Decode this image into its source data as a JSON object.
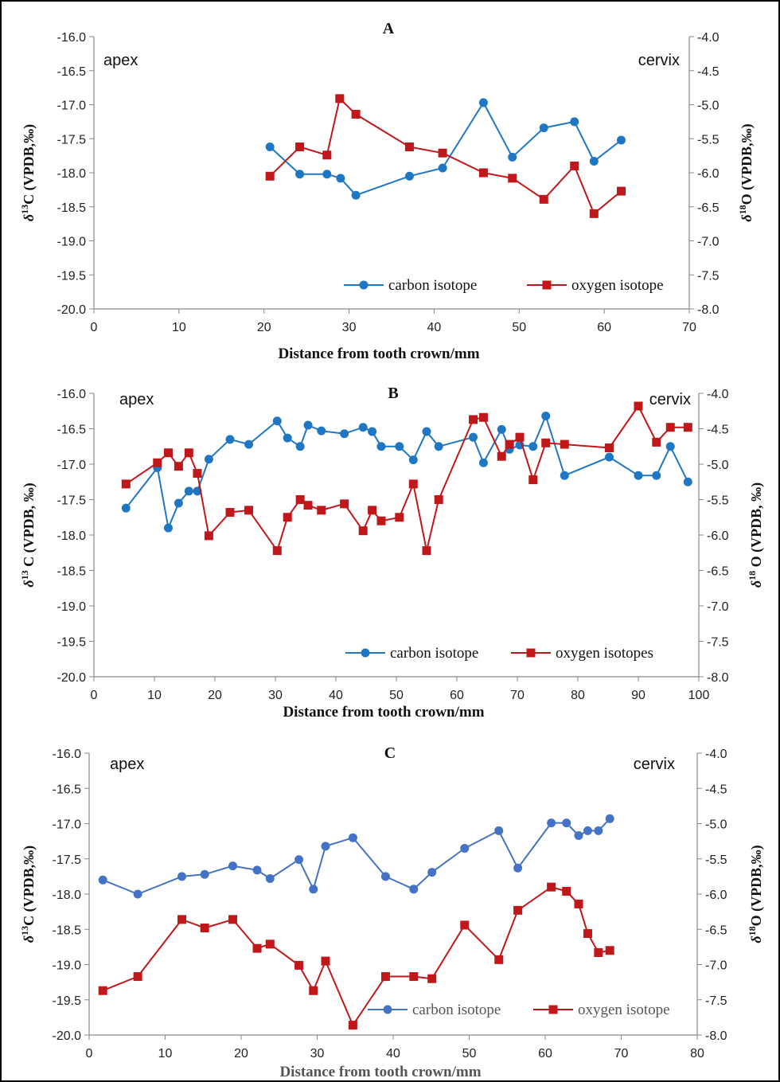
{
  "chart_data": [
    {
      "type": "line",
      "title": "A",
      "left_corner_label": "apex",
      "right_corner_label": "cervix",
      "xlabel": "Distance from tooth crown/mm",
      "ylabel_left": "δ13C (VPDB,‰)",
      "ylabel_right": "δ18O (VPDB,‰)",
      "xlim": [
        0,
        70
      ],
      "xticks": [
        0,
        10,
        20,
        30,
        40,
        50,
        60,
        70
      ],
      "ylim_left": [
        -20.0,
        -16.0
      ],
      "yticks_left": [
        "-16.0",
        "-16.5",
        "-17.0",
        "-17.5",
        "-18.0",
        "-18.5",
        "-19.0",
        "-19.5",
        "-20.0"
      ],
      "ylim_right": [
        -8.0,
        -4.0
      ],
      "yticks_right": [
        "-4.0",
        "-4.5",
        "-5.0",
        "-5.5",
        "-6.0",
        "-6.5",
        "-7.0",
        "-7.5",
        "-8.0"
      ],
      "legend_position": "bottom-right",
      "grid": false,
      "series": [
        {
          "name": "carbon isotope",
          "axis": "left",
          "color": "#1f77c4",
          "marker": "circle",
          "x": [
            20.7,
            24.2,
            27.4,
            29.0,
            30.8,
            37.1,
            41.0,
            45.8,
            49.2,
            52.9,
            56.5,
            58.8,
            62.0
          ],
          "y": [
            -17.62,
            -18.02,
            -18.02,
            -18.08,
            -18.33,
            -18.05,
            -17.93,
            -16.97,
            -17.77,
            -17.34,
            -17.25,
            -17.83,
            -17.52
          ]
        },
        {
          "name": "oxygen isotope",
          "axis": "right",
          "color": "#c0171b",
          "marker": "square",
          "x": [
            20.7,
            24.2,
            27.4,
            28.9,
            30.8,
            37.1,
            41.0,
            45.8,
            49.2,
            52.9,
            56.5,
            58.8,
            62.0
          ],
          "y": [
            -6.05,
            -5.62,
            -5.74,
            -4.91,
            -5.14,
            -5.62,
            -5.71,
            -6.0,
            -6.08,
            -6.39,
            -5.9,
            -6.6,
            -6.27
          ]
        }
      ]
    },
    {
      "type": "line",
      "title": "B",
      "left_corner_label": "apex",
      "right_corner_label": "cervix",
      "xlabel": "Distance from tooth crown/mm",
      "ylabel_left": "δ13 C (VPDB, ‰)",
      "ylabel_right": "δ18 O (VPDB, ‰)",
      "xlim": [
        0,
        100
      ],
      "xticks": [
        0,
        10,
        20,
        30,
        40,
        50,
        60,
        70,
        80,
        90,
        100
      ],
      "ylim_left": [
        -20.0,
        -16.0
      ],
      "yticks_left": [
        "-16.0",
        "-16.5",
        "-17.0",
        "-17.5",
        "-18.0",
        "-18.5",
        "-19.0",
        "-19.5",
        "-20.0"
      ],
      "ylim_right": [
        -8.0,
        -4.0
      ],
      "yticks_right": [
        "-4.0",
        "-4.5",
        "-5.0",
        "-5.5",
        "-6.0",
        "-6.5",
        "-7.0",
        "-7.5",
        "-8.0"
      ],
      "legend_position": "bottom-right",
      "grid": false,
      "series": [
        {
          "name": "carbon isotope",
          "axis": "left",
          "color": "#1f77c4",
          "marker": "circle",
          "x": [
            5.3,
            10.5,
            12.3,
            14.0,
            15.7,
            17.1,
            19.0,
            22.5,
            25.6,
            30.3,
            32.0,
            34.1,
            35.4,
            37.6,
            41.4,
            44.5,
            46.0,
            47.5,
            50.5,
            52.8,
            55.0,
            57.0,
            62.7,
            64.4,
            67.4,
            68.7,
            70.4,
            72.6,
            74.7,
            77.8,
            85.2,
            90.0,
            93.0,
            95.3,
            98.2
          ],
          "y": [
            -17.62,
            -17.05,
            -17.9,
            -17.55,
            -17.38,
            -17.38,
            -16.93,
            -16.65,
            -16.72,
            -16.39,
            -16.63,
            -16.75,
            -16.45,
            -16.53,
            -16.57,
            -16.48,
            -16.54,
            -16.75,
            -16.75,
            -16.94,
            -16.54,
            -16.75,
            -16.62,
            -16.98,
            -16.51,
            -16.79,
            -16.73,
            -16.75,
            -16.32,
            -17.16,
            -16.9,
            -17.16,
            -17.16,
            -16.75,
            -17.25
          ]
        },
        {
          "name": "oxygen isotopes",
          "axis": "right",
          "color": "#c0171b",
          "marker": "square",
          "x": [
            5.3,
            10.5,
            12.3,
            14.0,
            15.7,
            17.1,
            19.0,
            22.5,
            25.6,
            30.3,
            32.0,
            34.1,
            35.4,
            37.6,
            41.4,
            44.5,
            46.0,
            47.5,
            50.5,
            52.8,
            55.0,
            57.0,
            62.7,
            64.4,
            67.4,
            68.7,
            70.4,
            72.6,
            74.7,
            77.8,
            85.2,
            90.0,
            93.0,
            95.3,
            98.2
          ],
          "y": [
            -5.28,
            -4.98,
            -4.84,
            -5.03,
            -4.84,
            -5.13,
            -6.01,
            -5.68,
            -5.65,
            -6.22,
            -5.75,
            -5.5,
            -5.58,
            -5.65,
            -5.56,
            -5.94,
            -5.65,
            -5.8,
            -5.75,
            -5.28,
            -6.22,
            -5.5,
            -4.37,
            -4.34,
            -4.89,
            -4.72,
            -4.62,
            -5.22,
            -4.7,
            -4.72,
            -4.77,
            -4.18,
            -4.69,
            -4.48,
            -4.48
          ]
        }
      ]
    },
    {
      "type": "line",
      "title": "C",
      "left_corner_label": "apex",
      "right_corner_label": "cervix",
      "xlabel": "Distance from tooth crown/mm",
      "ylabel_left": "δ13C (VPDB,‰)",
      "ylabel_right": "δ18O (VPDB,‰)",
      "xlim": [
        0,
        80
      ],
      "xticks": [
        0,
        10,
        20,
        30,
        40,
        50,
        60,
        70,
        80
      ],
      "ylim_left": [
        -20.0,
        -16.0
      ],
      "yticks_left": [
        "-16.0",
        "-16.5",
        "-17.0",
        "-17.5",
        "-18.0",
        "-18.5",
        "-19.0",
        "-19.5",
        "-20.0"
      ],
      "ylim_right": [
        -8.0,
        -4.0
      ],
      "yticks_right": [
        "-4.0",
        "-4.5",
        "-5.0",
        "-5.5",
        "-6.0",
        "-6.5",
        "-7.0",
        "-7.5",
        "-8.0"
      ],
      "legend_position": "bottom-right",
      "grid": false,
      "series": [
        {
          "name": "carbon isotope",
          "axis": "left",
          "color": "#4472c4",
          "marker": "circle",
          "x": [
            1.8,
            6.4,
            12.2,
            15.2,
            18.9,
            22.1,
            23.8,
            27.6,
            29.5,
            31.1,
            34.7,
            39.0,
            42.7,
            45.1,
            49.4,
            53.9,
            56.4,
            60.8,
            62.8,
            64.4,
            65.6,
            67.0,
            68.5
          ],
          "y": [
            -17.8,
            -18.0,
            -17.75,
            -17.72,
            -17.6,
            -17.66,
            -17.78,
            -17.51,
            -17.93,
            -17.32,
            -17.2,
            -17.75,
            -17.93,
            -17.69,
            -17.35,
            -17.1,
            -17.63,
            -16.99,
            -16.99,
            -17.17,
            -17.1,
            -17.1,
            -16.93
          ]
        },
        {
          "name": "oxygen isotope",
          "axis": "right",
          "color": "#c0171b",
          "marker": "square",
          "x": [
            1.8,
            6.4,
            12.2,
            15.2,
            18.9,
            22.1,
            23.8,
            27.6,
            29.5,
            31.1,
            34.7,
            39.0,
            42.7,
            45.1,
            49.4,
            53.9,
            56.4,
            60.8,
            62.8,
            64.4,
            65.6,
            67.0,
            68.5
          ],
          "y": [
            -7.37,
            -7.17,
            -6.36,
            -6.48,
            -6.36,
            -6.77,
            -6.71,
            -7.01,
            -7.37,
            -6.95,
            -7.86,
            -7.17,
            -7.17,
            -7.2,
            -6.44,
            -6.93,
            -6.23,
            -5.9,
            -5.96,
            -6.14,
            -6.56,
            -6.83,
            -6.8
          ]
        }
      ]
    }
  ]
}
